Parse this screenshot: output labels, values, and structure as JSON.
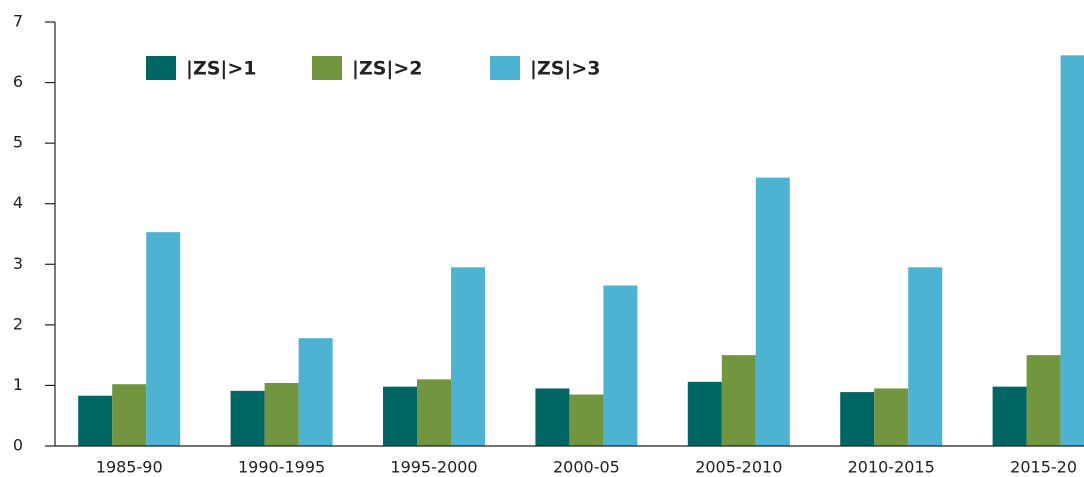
{
  "chart_data": {
    "type": "bar",
    "categories": [
      "1985-90",
      "1990-1995",
      "1995-2000",
      "2000-05",
      "2005-2010",
      "2010-2015",
      "2015-20"
    ],
    "series": [
      {
        "name": "|ZS|>1",
        "color": "#006663",
        "values": [
          0.83,
          0.91,
          0.98,
          0.95,
          1.06,
          0.89,
          0.98
        ]
      },
      {
        "name": "|ZS|>2",
        "color": "#72963f",
        "values": [
          1.02,
          1.04,
          1.1,
          0.85,
          1.5,
          0.95,
          1.5
        ]
      },
      {
        "name": "|ZS|>3",
        "color": "#4eb3d3",
        "values": [
          3.53,
          1.78,
          2.95,
          2.65,
          4.43,
          2.95,
          6.45
        ]
      }
    ],
    "ylim": [
      0,
      7
    ],
    "yticks": [
      0,
      1,
      2,
      3,
      4,
      5,
      6,
      7
    ]
  }
}
